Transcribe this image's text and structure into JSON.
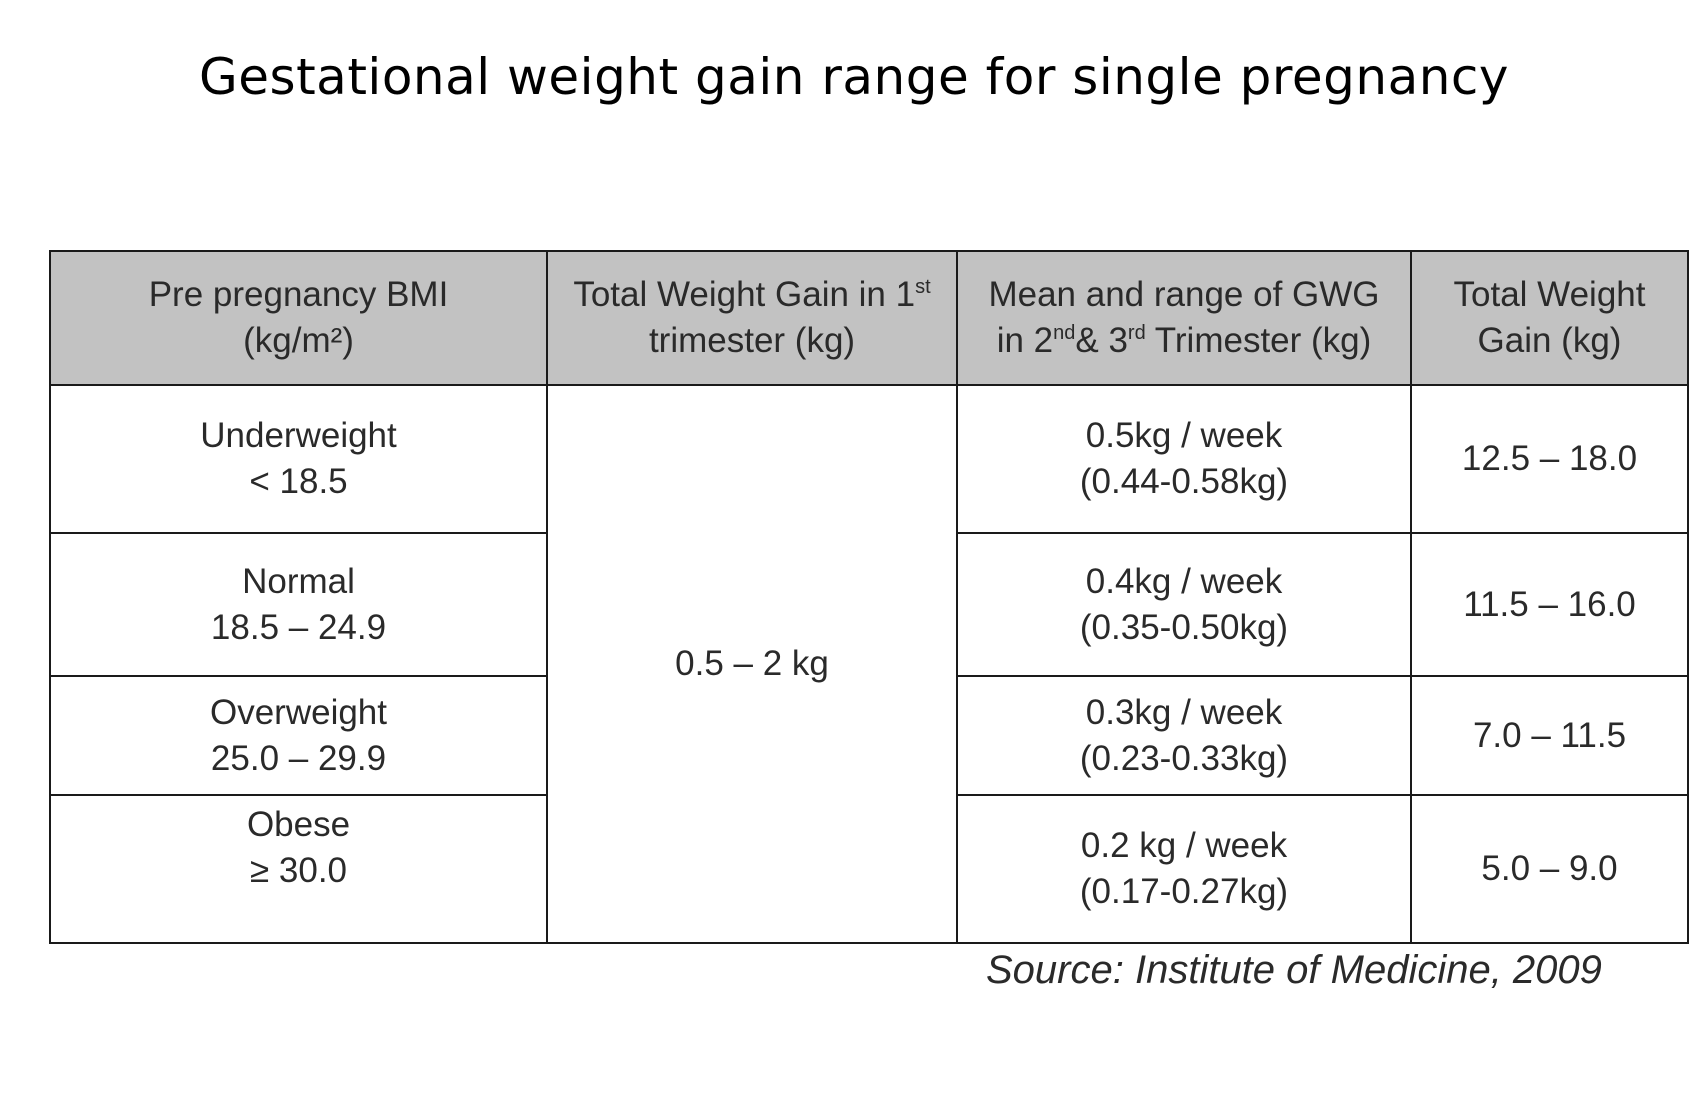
{
  "title": "Gestational weight gain range for single pregnancy",
  "table": {
    "headers": {
      "bmi": {
        "line1": "Pre pregnancy BMI",
        "line2": "(kg/m²)"
      },
      "first_trimester": {
        "line1_a": "Total Weight Gain in 1",
        "line1_sup": "st",
        "line2": "trimester (kg)"
      },
      "gwg": {
        "line1": "Mean and range of GWG",
        "line2_a": "in 2",
        "line2_sup1": "nd",
        "line2_b": "& 3",
        "line2_sup2": "rd",
        "line2_c": " Trimester (kg)"
      },
      "total": {
        "line1": "Total Weight",
        "line2": "Gain (kg)"
      }
    },
    "first_trimester_value": "0.5 – 2 kg",
    "rows": [
      {
        "category": "Underweight",
        "bmi_range": "< 18.5",
        "rate": "0.5kg / week",
        "rate_range": "(0.44-0.58kg)",
        "total": "12.5 – 18.0"
      },
      {
        "category": "Normal",
        "bmi_range": "18.5 – 24.9",
        "rate": "0.4kg / week",
        "rate_range": "(0.35-0.50kg)",
        "total": "11.5 – 16.0"
      },
      {
        "category": "Overweight",
        "bmi_range": "25.0 – 29.9",
        "rate": "0.3kg / week",
        "rate_range": "(0.23-0.33kg)",
        "total": "7.0 – 11.5"
      },
      {
        "category": "Obese",
        "bmi_range": "≥ 30.0",
        "rate": "0.2 kg / week",
        "rate_range": "(0.17-0.27kg)",
        "total": "5.0 – 9.0"
      }
    ]
  },
  "source": "Source: Institute of Medicine, 2009"
}
